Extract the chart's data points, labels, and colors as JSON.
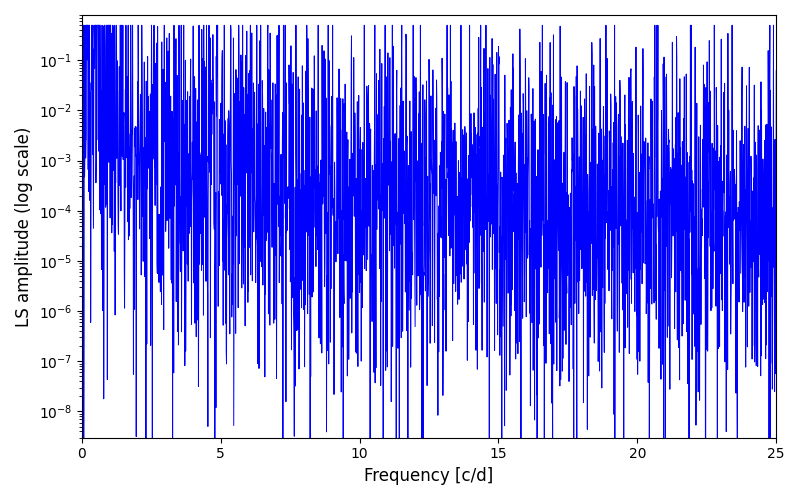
{
  "title": "",
  "xlabel": "Frequency [c/d]",
  "ylabel": "LS amplitude (log scale)",
  "line_color": "blue",
  "line_width": 0.7,
  "xmin": 0,
  "xmax": 25,
  "ymin": 3e-09,
  "ymax": 0.8,
  "figsize": [
    8.0,
    5.0
  ],
  "dpi": 100,
  "seed": 123,
  "n_points": 2500,
  "peak_freq": 1.0,
  "peak_amplitude": 0.3,
  "background_color": "#ffffff"
}
